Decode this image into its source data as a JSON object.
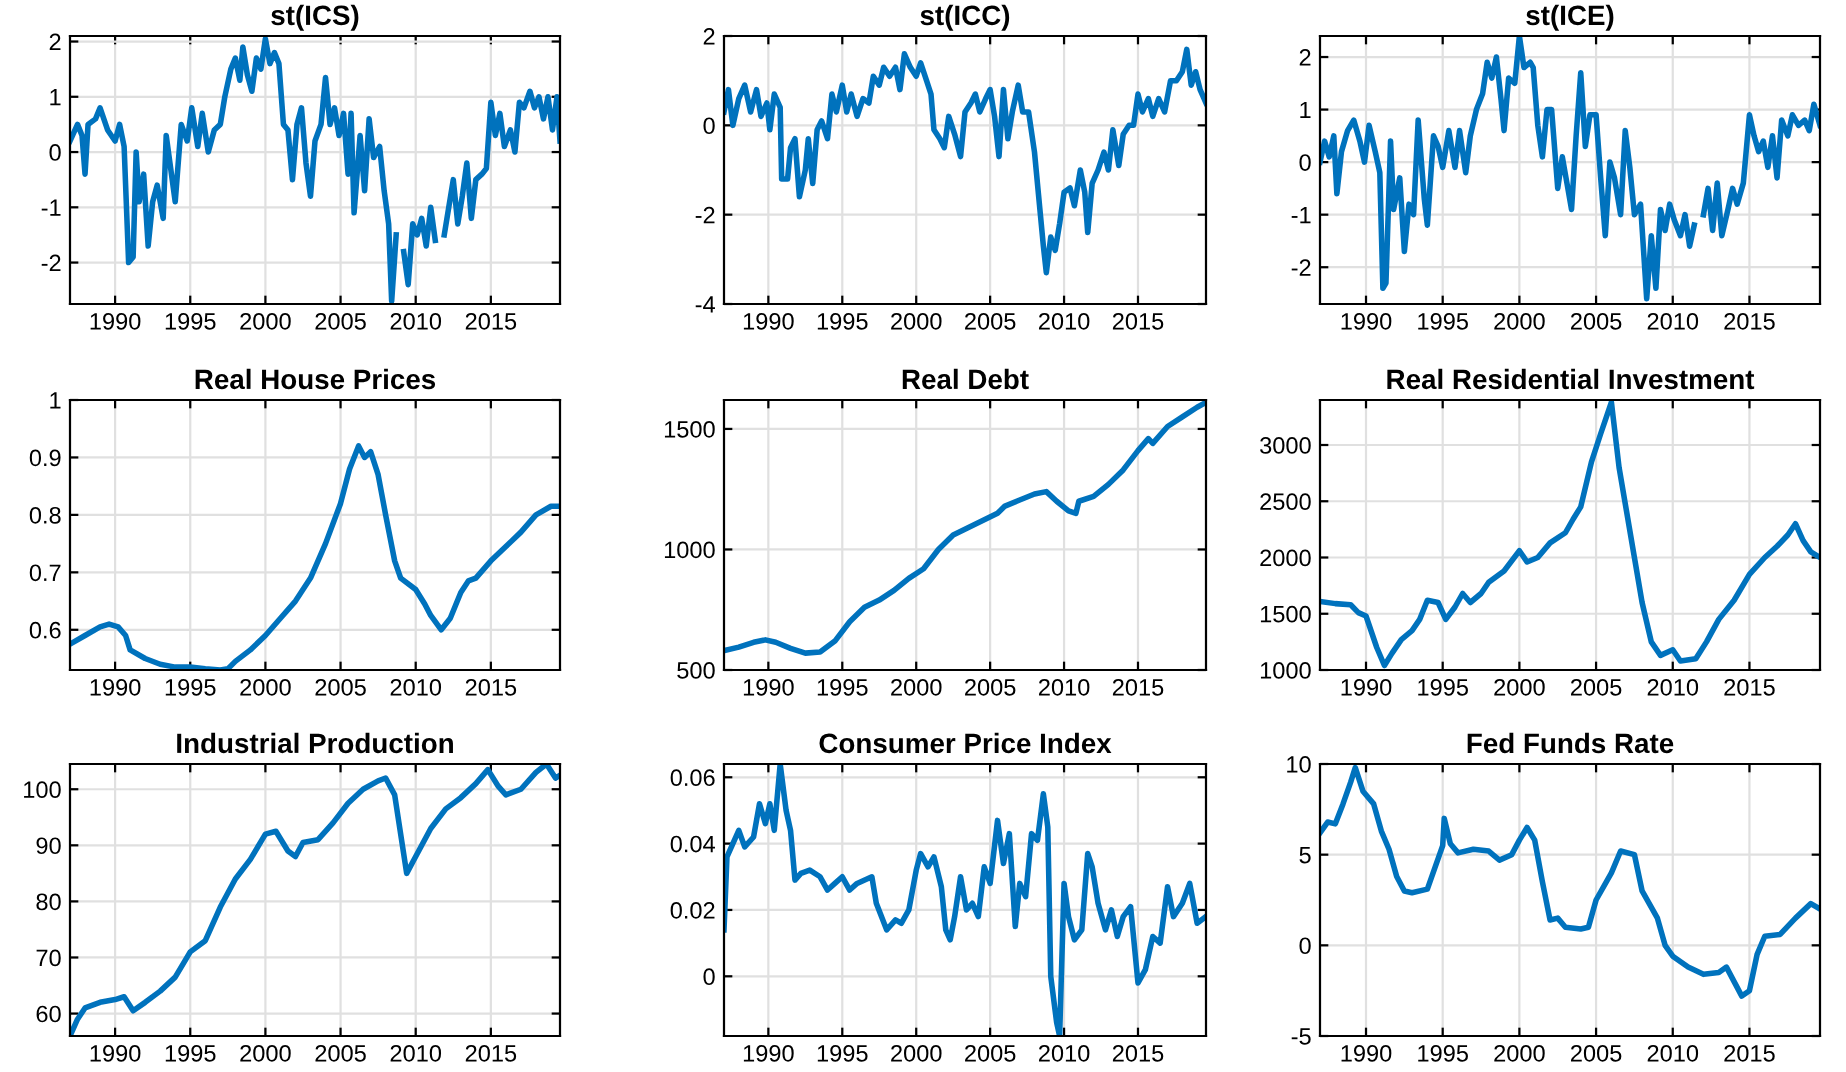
{
  "chart_data": [
    {
      "type": "line",
      "title": "st(ICS)",
      "xlim": [
        1987,
        2019.6
      ],
      "xticks": [
        1990,
        1995,
        2000,
        2005,
        2010,
        2015
      ],
      "ylim": [
        -2.75,
        2.1
      ],
      "yticks": [
        -2,
        -1,
        0,
        1,
        2
      ],
      "grid": true,
      "marker": "none",
      "line_style": "solid",
      "x": [
        1987.0,
        1987.5,
        1987.8,
        1988.0,
        1988.2,
        1988.7,
        1989.0,
        1989.5,
        1990.0,
        1990.3,
        1990.6,
        1990.9,
        1991.2,
        1991.4,
        1991.6,
        1991.9,
        1992.2,
        1992.5,
        1992.8,
        1993.2,
        1993.4,
        1993.7,
        1994.0,
        1994.4,
        1994.8,
        1995.1,
        1995.5,
        1995.8,
        1996.2,
        1996.6,
        1997.0,
        1997.3,
        1997.7,
        1998.0,
        1998.3,
        1998.5,
        1998.8,
        1999.1,
        1999.4,
        1999.7,
        2000.0,
        2000.3,
        2000.6,
        2000.9,
        2001.2,
        2001.5,
        2001.8,
        2002.1,
        2002.4,
        2002.7,
        2003.0,
        2003.3,
        2003.7,
        2004.0,
        2004.3,
        2004.6,
        2004.9,
        2005.2,
        2005.5,
        2005.7,
        2005.9,
        2006.3,
        2006.6,
        2006.9,
        2007.2,
        2007.6,
        2007.9,
        2008.2,
        2008.4,
        2008.7,
        2008.9,
        2009.2,
        2009.5,
        2009.8,
        2010.1,
        2010.4,
        2010.7,
        2011.0,
        2011.3,
        2011.6,
        2011.9,
        2012.2,
        2012.5,
        2012.8,
        2013.1,
        2013.4,
        2013.7,
        2014.0,
        2014.4,
        2014.7,
        2015.0,
        2015.3,
        2015.6,
        2015.9,
        2016.3,
        2016.6,
        2016.9,
        2017.2,
        2017.6,
        2017.9,
        2018.2,
        2018.5,
        2018.8,
        2019.1,
        2019.4,
        2019.6
      ],
      "series": [
        {
          "color": "#0072bd",
          "values": [
            0.2,
            0.5,
            0.3,
            -0.4,
            0.5,
            0.6,
            0.8,
            0.4,
            0.2,
            0.5,
            0.1,
            -2.0,
            -1.9,
            0.0,
            -0.9,
            -0.4,
            -1.7,
            -0.9,
            -0.6,
            -1.2,
            0.3,
            -0.3,
            -0.9,
            0.5,
            0.2,
            0.8,
            0.1,
            0.7,
            0.0,
            0.4,
            0.5,
            1.0,
            1.5,
            1.7,
            1.3,
            1.9,
            1.4,
            1.1,
            1.7,
            1.5,
            2.05,
            1.6,
            1.8,
            1.6,
            0.5,
            0.4,
            -0.5,
            0.5,
            0.8,
            -0.2,
            -0.8,
            0.2,
            0.5,
            1.35,
            0.5,
            0.8,
            0.3,
            0.7,
            -0.4,
            0.7,
            -1.1,
            0.3,
            -0.7,
            0.6,
            -0.1,
            0.1,
            -0.7,
            -1.3,
            -2.7,
            -1.5,
            null,
            -1.8,
            -2.4,
            -1.3,
            -1.5,
            -1.2,
            -1.7,
            -1.0,
            -1.6,
            null,
            -1.5,
            -1.0,
            -0.5,
            -1.3,
            -0.8,
            -0.2,
            -1.2,
            -0.5,
            -0.4,
            -0.3,
            0.9,
            0.3,
            0.7,
            0.1,
            0.4,
            0.0,
            0.9,
            0.8,
            1.1,
            0.8,
            1.0,
            0.6,
            1.0,
            0.4,
            1.0,
            0.2
          ]
        }
      ]
    },
    {
      "type": "line",
      "title": "st(ICC)",
      "xlim": [
        1987,
        2019.6
      ],
      "xticks": [
        1990,
        1995,
        2000,
        2005,
        2010,
        2015
      ],
      "ylim": [
        -4,
        2
      ],
      "yticks": [
        -4,
        -2,
        0,
        2
      ],
      "grid": true,
      "marker": "none",
      "line_style": "solid",
      "x": [
        1987.0,
        1987.3,
        1987.6,
        1988.0,
        1988.4,
        1988.8,
        1989.2,
        1989.5,
        1989.9,
        1990.1,
        1990.4,
        1990.8,
        1990.9,
        1991.3,
        1991.5,
        1991.8,
        1992.1,
        1992.5,
        1992.7,
        1993.0,
        1993.3,
        1993.6,
        1994.0,
        1994.3,
        1994.6,
        1995.0,
        1995.3,
        1995.6,
        1996.0,
        1996.4,
        1996.8,
        1997.1,
        1997.5,
        1997.8,
        1998.2,
        1998.6,
        1998.9,
        1999.2,
        1999.6,
        2000.0,
        2000.3,
        2000.7,
        2001.0,
        2001.2,
        2001.6,
        2001.9,
        2002.2,
        2002.6,
        2003.0,
        2003.3,
        2003.7,
        2004.0,
        2004.3,
        2004.7,
        2005.0,
        2005.3,
        2005.6,
        2005.9,
        2006.2,
        2006.5,
        2006.9,
        2007.2,
        2007.6,
        2008.0,
        2008.4,
        2008.6,
        2008.8,
        2009.1,
        2009.4,
        2009.7,
        2010.0,
        2010.4,
        2010.7,
        2011.1,
        2011.4,
        2011.6,
        2011.9,
        2012.3,
        2012.7,
        2013.0,
        2013.3,
        2013.7,
        2014.0,
        2014.4,
        2014.7,
        2015.0,
        2015.3,
        2015.7,
        2016.0,
        2016.4,
        2016.8,
        2017.2,
        2017.6,
        2018.0,
        2018.3,
        2018.6,
        2018.9,
        2019.2,
        2019.6
      ],
      "series": [
        {
          "color": "#0072bd",
          "values": [
            0.3,
            0.8,
            0.0,
            0.6,
            0.9,
            0.3,
            0.8,
            0.2,
            0.5,
            -0.1,
            0.7,
            0.4,
            -1.2,
            -1.2,
            -0.5,
            -0.3,
            -1.6,
            -1.0,
            -0.3,
            -1.3,
            -0.1,
            0.1,
            -0.3,
            0.7,
            0.3,
            0.9,
            0.3,
            0.7,
            0.2,
            0.6,
            0.5,
            1.1,
            0.9,
            1.3,
            1.1,
            1.3,
            0.8,
            1.6,
            1.3,
            1.1,
            1.4,
            1.0,
            0.7,
            -0.1,
            -0.3,
            -0.5,
            0.2,
            -0.2,
            -0.7,
            0.3,
            0.5,
            0.7,
            0.3,
            0.6,
            0.8,
            0.2,
            -0.7,
            0.8,
            -0.3,
            0.3,
            0.9,
            0.3,
            0.3,
            -0.6,
            -2.0,
            -2.7,
            -3.3,
            -2.5,
            -2.8,
            -2.2,
            -1.5,
            -1.4,
            -1.8,
            -1.0,
            -1.5,
            -2.4,
            -1.3,
            -1.0,
            -0.6,
            -1.0,
            -0.1,
            -0.9,
            -0.2,
            0.0,
            0.0,
            0.7,
            0.3,
            0.6,
            0.2,
            0.6,
            0.3,
            1.0,
            1.0,
            1.2,
            1.7,
            0.9,
            1.2,
            0.8,
            0.5
          ]
        }
      ]
    },
    {
      "type": "line",
      "title": "st(ICE)",
      "xlim": [
        1987,
        2019.6
      ],
      "xticks": [
        1990,
        1995,
        2000,
        2005,
        2010,
        2015
      ],
      "ylim": [
        -2.7,
        2.4
      ],
      "yticks": [
        -2,
        -1,
        0,
        1,
        2
      ],
      "grid": true,
      "marker": "none",
      "line_style": "solid",
      "x": [
        1987.0,
        1987.3,
        1987.6,
        1987.9,
        1988.1,
        1988.4,
        1988.8,
        1989.2,
        1989.6,
        1989.9,
        1990.2,
        1990.6,
        1990.9,
        1991.1,
        1991.3,
        1991.6,
        1991.8,
        1992.2,
        1992.5,
        1992.8,
        1993.1,
        1993.4,
        1993.8,
        1994.0,
        1994.4,
        1994.7,
        1995.0,
        1995.4,
        1995.8,
        1996.1,
        1996.5,
        1996.8,
        1997.2,
        1997.6,
        1997.9,
        1998.2,
        1998.5,
        1998.8,
        1999.0,
        1999.3,
        1999.7,
        2000.0,
        2000.3,
        2000.7,
        2000.9,
        2001.2,
        2001.5,
        2001.8,
        2002.1,
        2002.5,
        2002.8,
        2003.1,
        2003.4,
        2003.7,
        2004.0,
        2004.3,
        2004.6,
        2005.0,
        2005.3,
        2005.6,
        2005.9,
        2006.2,
        2006.6,
        2006.9,
        2007.2,
        2007.5,
        2007.9,
        2008.3,
        2008.6,
        2008.9,
        2009.2,
        2009.5,
        2009.8,
        2010.1,
        2010.5,
        2010.8,
        2011.1,
        2011.4,
        2011.7,
        2012.0,
        2012.3,
        2012.6,
        2012.9,
        2013.2,
        2013.6,
        2013.9,
        2014.2,
        2014.6,
        2015.0,
        2015.3,
        2015.6,
        2015.9,
        2016.2,
        2016.5,
        2016.8,
        2017.1,
        2017.5,
        2017.8,
        2018.2,
        2018.6,
        2018.9,
        2019.2,
        2019.6
      ],
      "series": [
        {
          "color": "#0072bd",
          "values": [
            0.0,
            0.4,
            0.1,
            0.5,
            -0.6,
            0.2,
            0.6,
            0.8,
            0.4,
            0.0,
            0.7,
            0.2,
            -0.2,
            -2.4,
            -2.3,
            0.4,
            -0.9,
            -0.3,
            -1.7,
            -0.8,
            -1.0,
            0.8,
            -0.7,
            -1.2,
            0.5,
            0.3,
            -0.1,
            0.6,
            -0.1,
            0.6,
            -0.2,
            0.5,
            1.0,
            1.3,
            1.9,
            1.6,
            2.0,
            1.2,
            0.6,
            1.6,
            1.5,
            2.4,
            1.8,
            1.9,
            1.8,
            0.7,
            0.1,
            1.0,
            1.0,
            -0.5,
            0.1,
            -0.4,
            -0.9,
            0.5,
            1.7,
            0.3,
            0.9,
            0.9,
            -0.3,
            -1.4,
            0.0,
            -0.3,
            -1.0,
            0.6,
            -0.1,
            -1.0,
            -0.8,
            -2.6,
            -1.4,
            -2.4,
            -0.9,
            -1.3,
            -0.8,
            -1.1,
            -1.4,
            -1.0,
            -1.6,
            -1.2,
            null,
            -1.0,
            -0.5,
            -1.3,
            -0.4,
            -1.4,
            -0.9,
            -0.5,
            -0.8,
            -0.4,
            0.9,
            0.5,
            0.2,
            0.4,
            -0.1,
            0.5,
            -0.3,
            0.8,
            0.5,
            0.9,
            0.7,
            0.8,
            0.6,
            1.1,
            0.7
          ]
        }
      ]
    },
    {
      "type": "line",
      "title": "Real House Prices",
      "xlim": [
        1987,
        2019.6
      ],
      "xticks": [
        1990,
        1995,
        2000,
        2005,
        2010,
        2015
      ],
      "ylim": [
        0.53,
        1.0
      ],
      "yticks": [
        0.6,
        0.7,
        0.8,
        0.9,
        1
      ],
      "grid": true,
      "marker": "none",
      "line_style": "solid",
      "x": [
        1987,
        1988,
        1989,
        1989.6,
        1990.2,
        1990.7,
        1991,
        1992,
        1993,
        1994,
        1995,
        1996,
        1997,
        1997.5,
        1998,
        1999,
        2000,
        2001,
        2002,
        2003,
        2004,
        2005,
        2005.6,
        2006.2,
        2006.6,
        2007,
        2007.5,
        2008,
        2008.6,
        2009,
        2010,
        2010.6,
        2011,
        2011.7,
        2012.3,
        2013,
        2013.5,
        2014,
        2015,
        2016,
        2017,
        2018,
        2019,
        2019.6
      ],
      "series": [
        {
          "color": "#0072bd",
          "values": [
            0.575,
            0.59,
            0.605,
            0.61,
            0.605,
            0.59,
            0.565,
            0.55,
            0.54,
            0.535,
            0.535,
            0.532,
            0.53,
            0.532,
            0.545,
            0.565,
            0.59,
            0.62,
            0.65,
            0.69,
            0.75,
            0.82,
            0.88,
            0.92,
            0.9,
            0.91,
            0.87,
            0.8,
            0.72,
            0.69,
            0.67,
            0.645,
            0.625,
            0.6,
            0.62,
            0.665,
            0.685,
            0.69,
            0.72,
            0.745,
            0.77,
            0.8,
            0.815,
            0.815
          ]
        }
      ]
    },
    {
      "type": "line",
      "title": "Real Debt",
      "xlim": [
        1987,
        2019.6
      ],
      "xticks": [
        1990,
        1995,
        2000,
        2005,
        2010,
        2015
      ],
      "ylim": [
        500,
        1620
      ],
      "yticks": [
        500,
        1000,
        1500
      ],
      "grid": true,
      "marker": "none",
      "line_style": "solid",
      "x": [
        1987,
        1988,
        1989,
        1989.8,
        1990.5,
        1991.5,
        1992.5,
        1993.5,
        1994.5,
        1995.5,
        1996.5,
        1997.5,
        1998.5,
        1999.5,
        2000.5,
        2001.5,
        2002.5,
        2003.5,
        2004.5,
        2005.5,
        2006,
        2007,
        2008,
        2008.8,
        2009.5,
        2010.3,
        2010.8,
        2011,
        2012,
        2013,
        2014,
        2015,
        2015.7,
        2016,
        2017,
        2018,
        2019,
        2019.6
      ],
      "series": [
        {
          "color": "#0072bd",
          "values": [
            580,
            595,
            615,
            625,
            615,
            590,
            570,
            575,
            620,
            700,
            760,
            790,
            830,
            880,
            920,
            1000,
            1060,
            1090,
            1120,
            1150,
            1180,
            1205,
            1230,
            1240,
            1200,
            1160,
            1150,
            1200,
            1220,
            1270,
            1330,
            1410,
            1460,
            1440,
            1510,
            1550,
            1590,
            1610
          ]
        }
      ]
    },
    {
      "type": "line",
      "title": "Real Residential Investment",
      "xlim": [
        1987,
        2019.6
      ],
      "xticks": [
        1990,
        1995,
        2000,
        2005,
        2010,
        2015
      ],
      "ylim": [
        1000,
        3400
      ],
      "yticks": [
        1000,
        1500,
        2000,
        2500,
        3000
      ],
      "grid": true,
      "marker": "none",
      "line_style": "solid",
      "x": [
        1987,
        1988,
        1989,
        1989.5,
        1990,
        1990.7,
        1991.2,
        1991.7,
        1992.3,
        1993,
        1993.5,
        1994,
        1994.7,
        1995.2,
        1995.8,
        1996.3,
        1996.8,
        1997.5,
        1998,
        1999,
        2000,
        2000.5,
        2001.2,
        2002,
        2003,
        2003.5,
        2004,
        2004.7,
        2005.3,
        2006,
        2006.5,
        2007,
        2007.5,
        2008,
        2008.6,
        2009.2,
        2010,
        2010.5,
        2011.5,
        2012.2,
        2013,
        2014,
        2015,
        2016,
        2016.8,
        2017.5,
        2018,
        2018.5,
        2019,
        2019.6
      ],
      "series": [
        {
          "color": "#0072bd",
          "values": [
            1610,
            1590,
            1580,
            1510,
            1480,
            1200,
            1040,
            1150,
            1270,
            1350,
            1450,
            1620,
            1600,
            1450,
            1560,
            1680,
            1600,
            1680,
            1780,
            1880,
            2060,
            1960,
            2000,
            2130,
            2220,
            2340,
            2450,
            2850,
            3100,
            3380,
            2800,
            2400,
            2000,
            1600,
            1250,
            1130,
            1180,
            1080,
            1100,
            1250,
            1450,
            1620,
            1850,
            2000,
            2100,
            2200,
            2300,
            2150,
            2050,
            2000
          ]
        }
      ]
    },
    {
      "type": "line",
      "title": "Industrial Production",
      "xlim": [
        1987,
        2019.6
      ],
      "xticks": [
        1990,
        1995,
        2000,
        2005,
        2010,
        2015
      ],
      "ylim": [
        56,
        104.5
      ],
      "yticks": [
        60,
        70,
        80,
        90,
        100
      ],
      "grid": true,
      "marker": "none",
      "line_style": "solid",
      "x": [
        1987,
        1987.5,
        1988,
        1989,
        1990,
        1990.6,
        1991.2,
        1992,
        1993,
        1994,
        1995,
        1996,
        1997,
        1998,
        1999,
        2000,
        2000.7,
        2001.5,
        2002,
        2002.5,
        2003.5,
        2004.5,
        2005.5,
        2006.5,
        2007.5,
        2008,
        2008.6,
        2009.4,
        2010,
        2011,
        2012,
        2013,
        2014,
        2014.8,
        2015.5,
        2016,
        2017,
        2018,
        2018.7,
        2019.3,
        2019.6
      ],
      "series": [
        {
          "color": "#0072bd",
          "values": [
            56,
            59,
            61,
            62,
            62.5,
            63,
            60.5,
            62,
            64,
            66.5,
            71,
            73,
            79,
            84,
            87.5,
            92,
            92.5,
            89,
            88,
            90.5,
            91,
            94,
            97.5,
            100,
            101.5,
            102,
            99,
            85,
            88,
            93,
            96.5,
            98.5,
            101,
            103.5,
            100.5,
            99,
            100,
            103,
            104.5,
            102,
            102.5
          ]
        }
      ]
    },
    {
      "type": "line",
      "title": "Consumer Price Index",
      "xlim": [
        1987,
        2019.6
      ],
      "xticks": [
        1990,
        1995,
        2000,
        2005,
        2010,
        2015
      ],
      "ylim": [
        -0.018,
        0.064
      ],
      "yticks": [
        0,
        0.02,
        0.04,
        0.06
      ],
      "grid": true,
      "marker": "none",
      "line_style": "solid",
      "x": [
        1987,
        1987.2,
        1987.6,
        1988,
        1988.4,
        1989,
        1989.4,
        1989.8,
        1990.1,
        1990.4,
        1990.8,
        1991.2,
        1991.5,
        1991.8,
        1992.2,
        1992.8,
        1993.5,
        1994,
        1994.5,
        1995,
        1995.5,
        1996,
        1997,
        1997.3,
        1998,
        1998.6,
        1999,
        1999.5,
        2000,
        2000.3,
        2000.8,
        2001.2,
        2001.7,
        2002,
        2002.3,
        2002.6,
        2003.0,
        2003.4,
        2003.8,
        2004.2,
        2004.6,
        2005,
        2005.5,
        2005.9,
        2006.3,
        2006.7,
        2007,
        2007.4,
        2007.8,
        2008.2,
        2008.6,
        2008.9,
        2009.1,
        2009.5,
        2009.7,
        2010,
        2010.3,
        2010.7,
        2011.2,
        2011.6,
        2011.9,
        2012.3,
        2012.8,
        2013.2,
        2013.6,
        2014.0,
        2014.5,
        2015.0,
        2015.5,
        2016,
        2016.5,
        2017,
        2017.4,
        2018,
        2018.5,
        2019,
        2019.6
      ],
      "series": [
        {
          "color": "#0072bd",
          "values": [
            0.014,
            0.036,
            0.04,
            0.044,
            0.039,
            0.042,
            0.052,
            0.046,
            0.052,
            0.044,
            0.064,
            0.05,
            0.044,
            0.029,
            0.031,
            0.032,
            0.03,
            0.026,
            0.028,
            0.03,
            0.026,
            0.028,
            0.03,
            0.022,
            0.014,
            0.017,
            0.016,
            0.02,
            0.032,
            0.037,
            0.033,
            0.036,
            0.027,
            0.014,
            0.011,
            0.018,
            0.03,
            0.02,
            0.022,
            0.018,
            0.033,
            0.028,
            0.047,
            0.034,
            0.043,
            0.015,
            0.028,
            0.024,
            0.043,
            0.041,
            0.055,
            0.045,
            0.0,
            -0.014,
            -0.018,
            0.028,
            0.018,
            0.011,
            0.014,
            0.037,
            0.033,
            0.022,
            0.014,
            0.02,
            0.012,
            0.018,
            0.021,
            -0.002,
            0.002,
            0.012,
            0.01,
            0.027,
            0.018,
            0.022,
            0.028,
            0.016,
            0.018
          ]
        }
      ]
    },
    {
      "type": "line",
      "title": "Fed Funds Rate",
      "xlim": [
        1987,
        2019.6
      ],
      "xticks": [
        1990,
        1995,
        2000,
        2005,
        2010,
        2015
      ],
      "ylim": [
        -5,
        10
      ],
      "yticks": [
        -5,
        0,
        5,
        10
      ],
      "grid": true,
      "marker": "none",
      "line_style": "solid",
      "x": [
        1987,
        1987.5,
        1988,
        1988.5,
        1989,
        1989.3,
        1989.8,
        1990.5,
        1991,
        1991.5,
        1992,
        1992.5,
        1993,
        1994,
        1994.5,
        1995,
        1995.1,
        1995.5,
        1996,
        1997,
        1998,
        1998.7,
        1999.5,
        2000,
        2000.5,
        2001,
        2001.5,
        2002,
        2002.5,
        2003,
        2004,
        2004.5,
        2005,
        2006,
        2006.6,
        2007.5,
        2008,
        2009,
        2009.5,
        2010,
        2011,
        2012,
        2013,
        2013.5,
        2014,
        2014.5,
        2015,
        2015.5,
        2016,
        2017,
        2018,
        2019,
        2019.6
      ],
      "series": [
        {
          "color": "#0072bd",
          "values": [
            6.2,
            6.8,
            6.7,
            7.8,
            9.0,
            9.8,
            8.5,
            7.8,
            6.3,
            5.3,
            3.8,
            3.0,
            2.9,
            3.1,
            4.3,
            5.5,
            7.0,
            5.6,
            5.1,
            5.3,
            5.2,
            4.7,
            5.0,
            5.8,
            6.5,
            5.8,
            3.5,
            1.4,
            1.5,
            1.0,
            0.9,
            1.0,
            2.5,
            4.0,
            5.2,
            5.0,
            3.0,
            1.5,
            0.0,
            -0.6,
            -1.2,
            -1.6,
            -1.5,
            -1.2,
            -2.0,
            -2.8,
            -2.5,
            -0.5,
            0.5,
            0.6,
            1.5,
            2.3,
            2.0
          ]
        }
      ]
    }
  ]
}
